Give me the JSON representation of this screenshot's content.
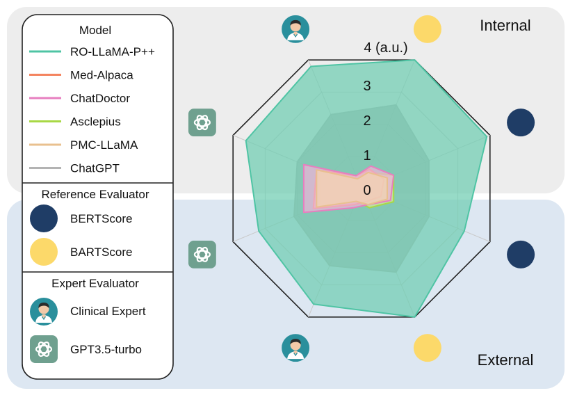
{
  "regions": {
    "internal_label": "Internal",
    "external_label": "External",
    "internal_color": "#ededed",
    "external_color": "#dde7f2"
  },
  "legend": {
    "model_title": "Model",
    "models": [
      {
        "name": "RO-LLaMA-P++",
        "color": "#4fc4a4"
      },
      {
        "name": "Med-Alpaca",
        "color": "#f4845f"
      },
      {
        "name": "ChatDoctor",
        "color": "#e77fbf"
      },
      {
        "name": "Asclepius",
        "color": "#a8d845"
      },
      {
        "name": "PMC-LLaMA",
        "color": "#e9c08f"
      },
      {
        "name": "ChatGPT",
        "color": "#b3b3b3"
      }
    ],
    "reference_title": "Reference Evaluator",
    "references": [
      {
        "name": "BERTScore",
        "icon": "navy-circle-icon",
        "color": "#1f3d66"
      },
      {
        "name": "BARTScore",
        "icon": "yellow-circle-icon",
        "color": "#fcd96a"
      }
    ],
    "expert_title": "Expert Evaluator",
    "experts": [
      {
        "name": "Clinical Expert",
        "icon": "doctor-icon"
      },
      {
        "name": "GPT3.5-turbo",
        "icon": "openai-icon"
      }
    ]
  },
  "chart_data": {
    "type": "radar",
    "unit_label": "4 (a.u.)",
    "tick_labels": [
      "0",
      "1",
      "2",
      "3"
    ],
    "range": [
      0,
      4
    ],
    "axes": [
      {
        "evaluator": "BARTScore",
        "icon": "yellow-circle-icon",
        "region": "Internal"
      },
      {
        "evaluator": "BERTScore",
        "icon": "navy-circle-icon",
        "region": "Internal"
      },
      {
        "evaluator": "BERTScore",
        "icon": "navy-circle-icon",
        "region": "External"
      },
      {
        "evaluator": "BARTScore",
        "icon": "yellow-circle-icon",
        "region": "External"
      },
      {
        "evaluator": "Clinical Expert",
        "icon": "doctor-icon",
        "region": "External"
      },
      {
        "evaluator": "GPT3.5-turbo",
        "icon": "openai-icon",
        "region": "External"
      },
      {
        "evaluator": "GPT3.5-turbo",
        "icon": "openai-icon",
        "region": "Internal"
      },
      {
        "evaluator": "Clinical Expert",
        "icon": "doctor-icon",
        "region": "Internal"
      }
    ],
    "series": [
      {
        "name": "ChatGPT",
        "color": "#b3b3b3",
        "fill": "#a9a9a9",
        "values": [
          2.6,
          2.1,
          2.1,
          2.6,
          2.4,
          2.1,
          2.0,
          2.3
        ]
      },
      {
        "name": "RO-LLaMA-P++",
        "color": "#4fc4a4",
        "fill": "#6fcdb2",
        "values": [
          4.0,
          3.9,
          3.2,
          4.0,
          3.6,
          3.2,
          3.6,
          3.8
        ]
      },
      {
        "name": "Asclepius",
        "color": "#a8d845",
        "fill": "#d6e89a",
        "values": [
          0.5,
          1.0,
          1.0,
          0.6,
          0.4,
          1.3,
          1.3,
          0.3
        ]
      },
      {
        "name": "Med-Alpaca",
        "color": "#f4845f",
        "fill": "#f7b59b",
        "values": [
          0.6,
          0.7,
          0.6,
          0.4,
          0.5,
          1.5,
          1.4,
          0.4
        ]
      },
      {
        "name": "ChatDoctor",
        "color": "#e77fbf",
        "fill": "#efb3d8",
        "values": [
          0.7,
          1.0,
          0.9,
          0.5,
          0.6,
          1.8,
          1.8,
          0.4
        ]
      },
      {
        "name": "PMC-LLaMA",
        "color": "#e9c08f",
        "fill": "#f0d6b2",
        "values": [
          0.5,
          0.8,
          0.8,
          0.5,
          0.4,
          1.4,
          1.4,
          0.3
        ]
      }
    ]
  }
}
